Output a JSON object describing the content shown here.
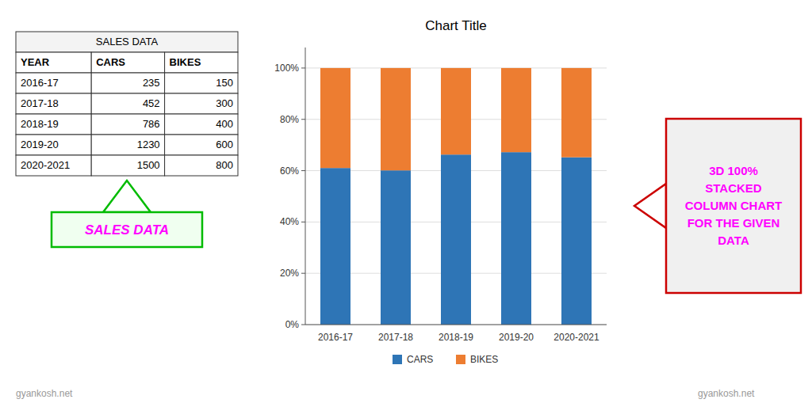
{
  "chart_data": {
    "type": "bar",
    "stacked": true,
    "title": "Chart Title",
    "categories": [
      "2016-17",
      "2017-18",
      "2018-19",
      "2019-20",
      "2020-2021"
    ],
    "series": [
      {
        "name": "CARS",
        "color": "#2E75B6",
        "values": [
          61.03896103896104,
          60.1063829787234,
          66.2731871838111,
          67.21311475409836,
          65.21739130434783
        ]
      },
      {
        "name": "BIKES",
        "color": "#ED7D31",
        "values": [
          38.96103896103896,
          39.8936170212766,
          33.7268128161889,
          32.78688524590164,
          34.78260869565217
        ]
      }
    ],
    "ylim": [
      0,
      108
    ],
    "yticks": [
      {
        "value": 0,
        "label": "0%"
      },
      {
        "value": 20,
        "label": "20%"
      },
      {
        "value": 40,
        "label": "40%"
      },
      {
        "value": 60,
        "label": "60%"
      },
      {
        "value": 80,
        "label": "80%"
      },
      {
        "value": 100,
        "label": "100%"
      }
    ],
    "grid": true,
    "legend": "bottom",
    "annotations": [
      "SALES DATA",
      "3D 100%\nSTACKED\nCOLUMN CHART\nFOR THE GIVEN\nDATA"
    ],
    "table": {
      "header": "SALES DATA",
      "columns": [
        "YEAR",
        "CARS",
        "BIKES"
      ],
      "rows": [
        [
          "2016-17",
          "235",
          "150"
        ],
        [
          "2017-18",
          "452",
          "300"
        ],
        [
          "2018-19",
          "786",
          "400"
        ],
        [
          "2019-20",
          "1230",
          "600"
        ],
        [
          "2020-2021",
          "1500",
          "800"
        ]
      ]
    },
    "watermark": "gyankosh.net"
  }
}
